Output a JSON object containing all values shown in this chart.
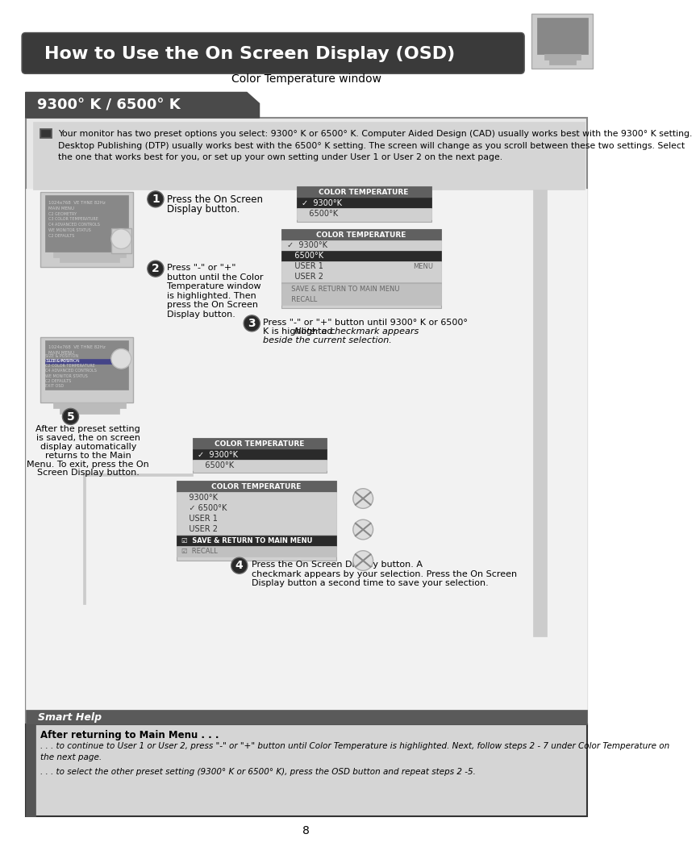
{
  "title_text": "How to Use the On Screen Display (OSD)",
  "subtitle": "Color Temperature window",
  "section_title": "9300° K / 6500° K",
  "info_lines": [
    "Your monitor has two preset options you select: 9300° K or 6500° K. Computer Aided Design (CAD) usually works best with the 9300° K setting.",
    "Desktop Publishing (DTP) usually works best with the 6500° K setting. The screen will change as you scroll between these two settings. Select",
    "the one that works best for you, or set up your own setting under User 1 or User 2 on the next page."
  ],
  "step1_lines": [
    "Press the On Screen",
    "Display button."
  ],
  "step2_lines": [
    "Press \"-\" or \"+\"",
    "button until the Color",
    "Temperature window",
    "is highlighted. Then",
    "press the On Screen",
    "Display button."
  ],
  "step3_line1": "Press \"-\" or \"+\" button until 9300° K or 6500°",
  "step3_line2": "K is highlighted. ",
  "step3_line2b": "Note: a checkmark appears",
  "step3_line3": "beside the current selection.",
  "step4_lines": [
    "Press the On Screen Display button. A",
    "checkmark appears by your selection. Press the On Screen",
    "Display button a second time to save your selection."
  ],
  "step5_lines": [
    "After the preset setting",
    "is saved, the on screen",
    "display automatically",
    "returns to the Main",
    "Menu. To exit, press the On",
    "Screen Display button."
  ],
  "osd_title": "COLOR TEMPERATURE",
  "osd1_items": [
    "✓  9300°K",
    "   6500°K"
  ],
  "osd1_highlight": [
    0
  ],
  "osd2_items": [
    "✓  9300°K",
    "   6500°K",
    "   USER 1",
    "   USER 2"
  ],
  "osd2_highlight": [
    1
  ],
  "osd2_bottom": [
    "  SAVE & RETURN TO MAIN MENU",
    "  RECALL"
  ],
  "osd3_items": [
    "✓  9300°K",
    "   6500°K"
  ],
  "osd3_highlight": [
    0
  ],
  "osd4_items": [
    "   9300°K",
    "   ✓ 6500°K",
    "   USER 1",
    "   USER 2"
  ],
  "osd4_highlight": [],
  "osd4_bottom_highlighted": "☑  SAVE & RETURN TO MAIN MENU",
  "osd4_bottom_normal": "☑  RECALL",
  "menu_label": "MENU",
  "smart_help_title": "Smart Help",
  "smart_help_heading": "After returning to Main Menu . . .",
  "smart_help_line1": ". . . to continue to User 1 or User 2, press \"-\" or \"+\" button until Color Temperature is highlighted. Next, follow steps 2 - 7 under Color Temperature on",
  "smart_help_line1b": "the next page.",
  "smart_help_line2": ". . . to select the other preset setting (9300° K or 6500° K), press the OSD button and repeat steps 2 -5.",
  "page_number": "8",
  "col_white": "#ffffff",
  "col_black": "#000000",
  "col_darkgray": "#3a3a3a",
  "col_medgray": "#606060",
  "col_lightgray": "#d0d0d0",
  "col_panelbg": "#e8e8e8",
  "col_infobg": "#d5d5d5",
  "col_darkrow": "#2a2a2a",
  "col_section": "#4a4a4a",
  "col_smarthelpbar": "#5a5a5a",
  "col_monbg": "#aaaaaa",
  "col_monscreen": "#888888"
}
